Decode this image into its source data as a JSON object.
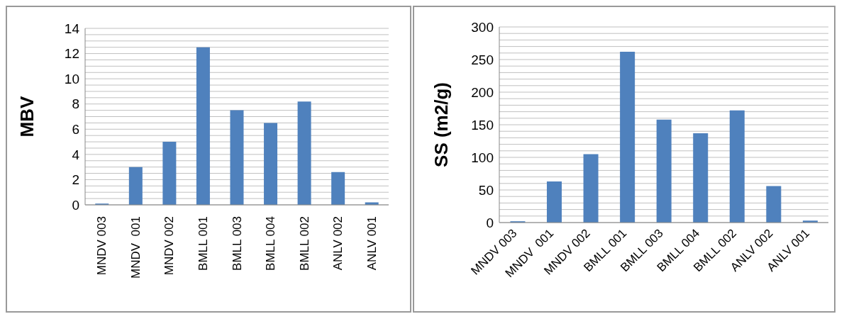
{
  "chart_data": [
    {
      "type": "bar",
      "ylabel": "MBV",
      "categories": [
        "MNDV 003",
        "MNDV  001",
        "MNDV 002",
        "BMLL 001",
        "BMLL 003",
        "BMLL 004",
        "BMLL 002",
        "ANLV 002",
        "ANLV 001"
      ],
      "values": [
        0.1,
        3.0,
        5.0,
        12.5,
        7.5,
        6.5,
        8.2,
        2.6,
        0.2
      ],
      "color": "#4f81bd",
      "ylim": [
        0,
        14
      ],
      "yticks": [
        0,
        {
          "value": 0.5,
          "label": null
        },
        {
          "value": 1,
          "label": null
        },
        {
          "value": 1.5,
          "label": null
        },
        2,
        {
          "value": 2.5,
          "label": null
        },
        {
          "value": 3,
          "label": null
        },
        {
          "value": 3.5,
          "label": null
        },
        4,
        {
          "value": 4.5,
          "label": null
        },
        {
          "value": 5,
          "label": null
        },
        {
          "value": 5.5,
          "label": null
        },
        6,
        {
          "value": 6.5,
          "label": null
        },
        {
          "value": 7,
          "label": null
        },
        {
          "value": 7.5,
          "label": null
        },
        8,
        {
          "value": 8.5,
          "label": null
        },
        {
          "value": 9,
          "label": null
        },
        {
          "value": 9.5,
          "label": null
        },
        10,
        {
          "value": 10.5,
          "label": null
        },
        {
          "value": 11,
          "label": null
        },
        {
          "value": 11.5,
          "label": null
        },
        12,
        {
          "value": 12.5,
          "label": null
        },
        {
          "value": 13,
          "label": null
        },
        {
          "value": 13.5,
          "label": null
        },
        14
      ],
      "grid": "y"
    },
    {
      "type": "bar",
      "ylabel": "SS (m2/g)",
      "categories": [
        "MNDV 003",
        "MNDV  001",
        "MNDV 002",
        "BMLL 001",
        "BMLL 003",
        "BMLL 004",
        "BMLL 002",
        "ANLV 002",
        "ANLV 001"
      ],
      "values": [
        2,
        63,
        105,
        262,
        158,
        137,
        172,
        56,
        3
      ],
      "color": "#4f81bd",
      "ylim": [
        0,
        300
      ],
      "yticks": [
        0,
        {
          "value": 10,
          "label": null
        },
        {
          "value": 20,
          "label": null
        },
        {
          "value": 30,
          "label": null
        },
        {
          "value": 40,
          "label": null
        },
        50,
        {
          "value": 60,
          "label": null
        },
        {
          "value": 70,
          "label": null
        },
        {
          "value": 80,
          "label": null
        },
        {
          "value": 90,
          "label": null
        },
        100,
        {
          "value": 110,
          "label": null
        },
        {
          "value": 120,
          "label": null
        },
        {
          "value": 130,
          "label": null
        },
        {
          "value": 140,
          "label": null
        },
        150,
        {
          "value": 160,
          "label": null
        },
        {
          "value": 170,
          "label": null
        },
        {
          "value": 180,
          "label": null
        },
        {
          "value": 190,
          "label": null
        },
        200,
        {
          "value": 210,
          "label": null
        },
        {
          "value": 220,
          "label": null
        },
        {
          "value": 230,
          "label": null
        },
        {
          "value": 240,
          "label": null
        },
        250,
        {
          "value": 260,
          "label": null
        },
        {
          "value": 270,
          "label": null
        },
        {
          "value": 280,
          "label": null
        },
        {
          "value": 290,
          "label": null
        },
        300
      ],
      "grid": "y"
    }
  ]
}
